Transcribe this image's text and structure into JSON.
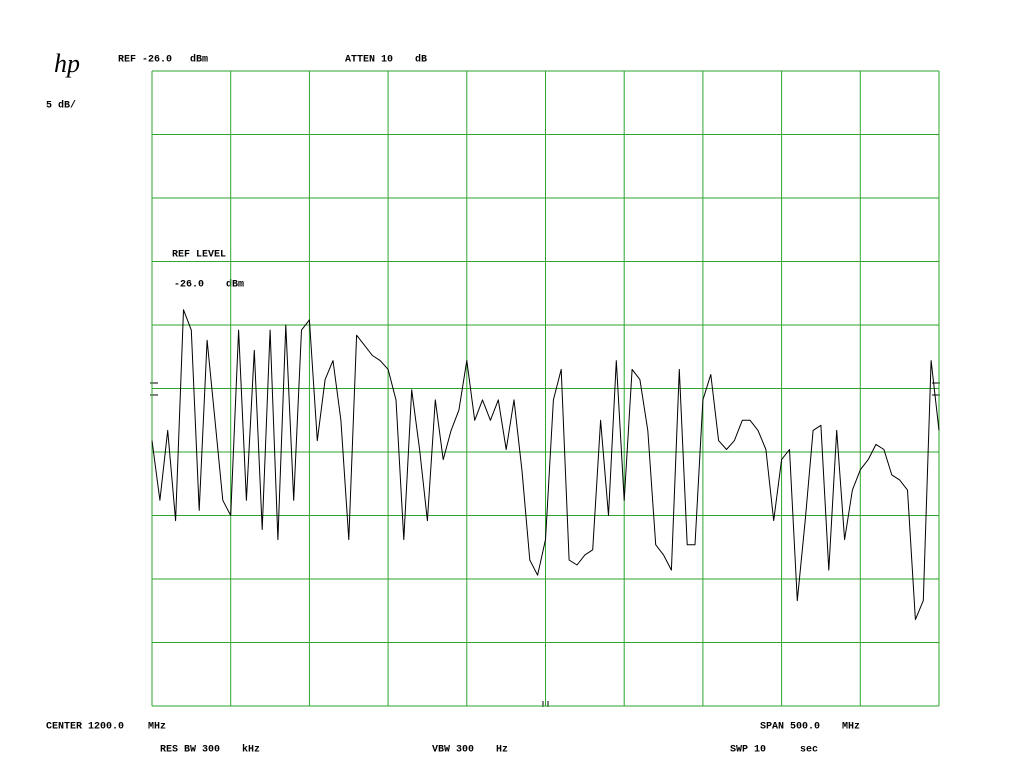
{
  "chart_data": {
    "type": "line",
    "annotations": {
      "logo": "hp",
      "ref": "REF -26.0",
      "ref_unit": "dBm",
      "atten": "ATTEN 10",
      "atten_unit": "dB",
      "scale": "5 dB/",
      "ref_level_title": "REF LEVEL",
      "ref_level_value": "-26.0",
      "ref_level_unit": "dBm",
      "center": "CENTER 1200.0",
      "center_unit": "MHz",
      "span": "SPAN 500.0",
      "span_unit": "MHz",
      "rbw": "RES BW 300",
      "rbw_unit": "kHz",
      "vbw": "VBW 300",
      "vbw_unit": "Hz",
      "swp": "SWP 10",
      "swp_unit": "sec"
    },
    "x": [
      950,
      955,
      960,
      965,
      970,
      975,
      980,
      985,
      990,
      995,
      1000,
      1005,
      1010,
      1015,
      1020,
      1025,
      1030,
      1035,
      1040,
      1045,
      1050,
      1055,
      1060,
      1065,
      1070,
      1075,
      1080,
      1085,
      1090,
      1095,
      1100,
      1105,
      1110,
      1115,
      1120,
      1125,
      1130,
      1135,
      1140,
      1145,
      1150,
      1155,
      1160,
      1165,
      1170,
      1175,
      1180,
      1185,
      1190,
      1195,
      1200,
      1205,
      1210,
      1215,
      1220,
      1225,
      1230,
      1235,
      1240,
      1245,
      1250,
      1255,
      1260,
      1265,
      1270,
      1275,
      1280,
      1285,
      1290,
      1295,
      1300,
      1305,
      1310,
      1315,
      1320,
      1325,
      1330,
      1335,
      1340,
      1345,
      1350,
      1355,
      1360,
      1365,
      1370,
      1375,
      1380,
      1385,
      1390,
      1395,
      1400,
      1405,
      1410,
      1415,
      1420,
      1425,
      1430,
      1435,
      1440,
      1445,
      1450
    ],
    "values": [
      -55.1,
      -59.8,
      -54.3,
      -61.4,
      -44.8,
      -46.4,
      -60.6,
      -47.2,
      -53.5,
      -59.8,
      -61.0,
      -46.4,
      -59.8,
      -48.0,
      -62.1,
      -46.4,
      -62.9,
      -46.0,
      -59.8,
      -46.4,
      -45.6,
      -55.1,
      -50.3,
      -48.8,
      -53.5,
      -62.9,
      -46.8,
      -47.6,
      -48.4,
      -48.8,
      -49.5,
      -51.9,
      -62.9,
      -51.1,
      -55.8,
      -61.4,
      -51.9,
      -56.6,
      -54.3,
      -52.7,
      -48.8,
      -53.5,
      -51.9,
      -53.5,
      -51.9,
      -55.8,
      -51.9,
      -57.4,
      -64.5,
      -65.7,
      -62.9,
      -51.9,
      -49.5,
      -64.5,
      -64.9,
      -64.1,
      -63.7,
      -53.5,
      -61.0,
      -48.8,
      -59.8,
      -49.5,
      -50.3,
      -54.3,
      -63.3,
      -64.1,
      -65.3,
      -49.5,
      -63.3,
      -63.3,
      -51.9,
      -49.9,
      -55.1,
      -55.8,
      -55.1,
      -53.5,
      -53.5,
      -54.3,
      -55.8,
      -61.4,
      -56.6,
      -55.8,
      -67.7,
      -61.4,
      -54.3,
      -53.9,
      -65.3,
      -54.3,
      -62.9,
      -59.0,
      -57.4,
      -56.6,
      -55.4,
      -55.8,
      -57.8,
      -58.2,
      -59.0,
      -69.2,
      -67.7,
      -48.8,
      -54.3
    ],
    "color": "#000000",
    "grid_color": "#2ea52e",
    "grid": true,
    "xlim": [
      950,
      1450
    ],
    "ylim": [
      -76,
      -26
    ],
    "xticks": [
      950,
      1000,
      1050,
      1100,
      1150,
      1200,
      1250,
      1300,
      1350,
      1400,
      1450
    ],
    "yticks": [
      -76,
      -71,
      -66,
      -61,
      -56,
      -51,
      -46,
      -41,
      -36,
      -31,
      -26
    ]
  }
}
